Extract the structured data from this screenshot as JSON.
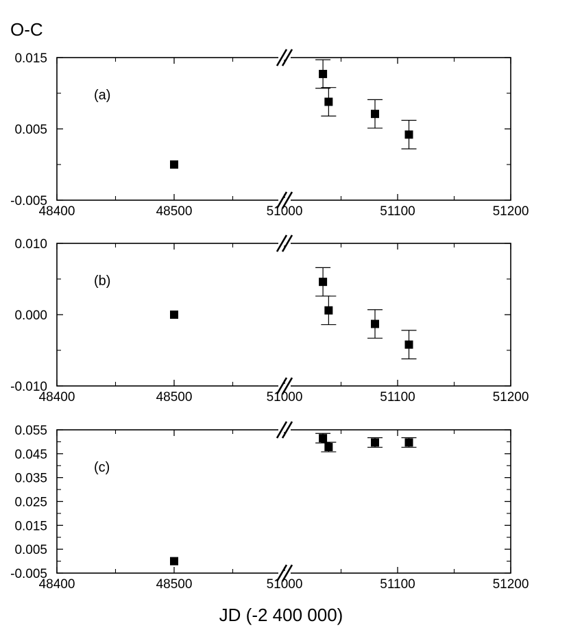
{
  "chart_data": {
    "type": "scatter",
    "ylabel": "O-C",
    "xlabel": "JD (-2 400 000)",
    "x_axis_break": "//",
    "x_tick_labels": [
      "48400",
      "48500",
      "51000",
      "51100",
      "51200"
    ],
    "panels": [
      {
        "label": "(a)",
        "ylim": [
          -0.005,
          0.015
        ],
        "y_tick_labels": [
          "0.015",
          "0.005",
          "-0.005"
        ],
        "points": [
          {
            "x": 48500,
            "y": 0.0,
            "err": null
          },
          {
            "x": 51034,
            "y": 0.0127,
            "err": 0.002
          },
          {
            "x": 51039,
            "y": 0.0088,
            "err": 0.002
          },
          {
            "x": 51080,
            "y": 0.0071,
            "err": 0.002
          },
          {
            "x": 51110,
            "y": 0.0042,
            "err": 0.002
          }
        ]
      },
      {
        "label": "(b)",
        "ylim": [
          -0.01,
          0.01
        ],
        "y_tick_labels": [
          "0.010",
          "0.000",
          "-0.010"
        ],
        "points": [
          {
            "x": 48500,
            "y": 0.0,
            "err": null
          },
          {
            "x": 51034,
            "y": 0.0046,
            "err": 0.002
          },
          {
            "x": 51039,
            "y": 0.0006,
            "err": 0.002
          },
          {
            "x": 51080,
            "y": -0.0013,
            "err": 0.002
          },
          {
            "x": 51110,
            "y": -0.0042,
            "err": 0.002
          }
        ]
      },
      {
        "label": "(c)",
        "ylim": [
          -0.005,
          0.055
        ],
        "y_tick_labels": [
          "0.055",
          "0.045",
          "0.035",
          "0.025",
          "0.015",
          "0.005",
          "-0.005"
        ],
        "points": [
          {
            "x": 48500,
            "y": 0.0,
            "err": null
          },
          {
            "x": 51034,
            "y": 0.0515,
            "err": 0.002
          },
          {
            "x": 51039,
            "y": 0.0478,
            "err": 0.002
          },
          {
            "x": 51080,
            "y": 0.0497,
            "err": 0.002
          },
          {
            "x": 51110,
            "y": 0.0497,
            "err": 0.002
          }
        ]
      }
    ]
  }
}
